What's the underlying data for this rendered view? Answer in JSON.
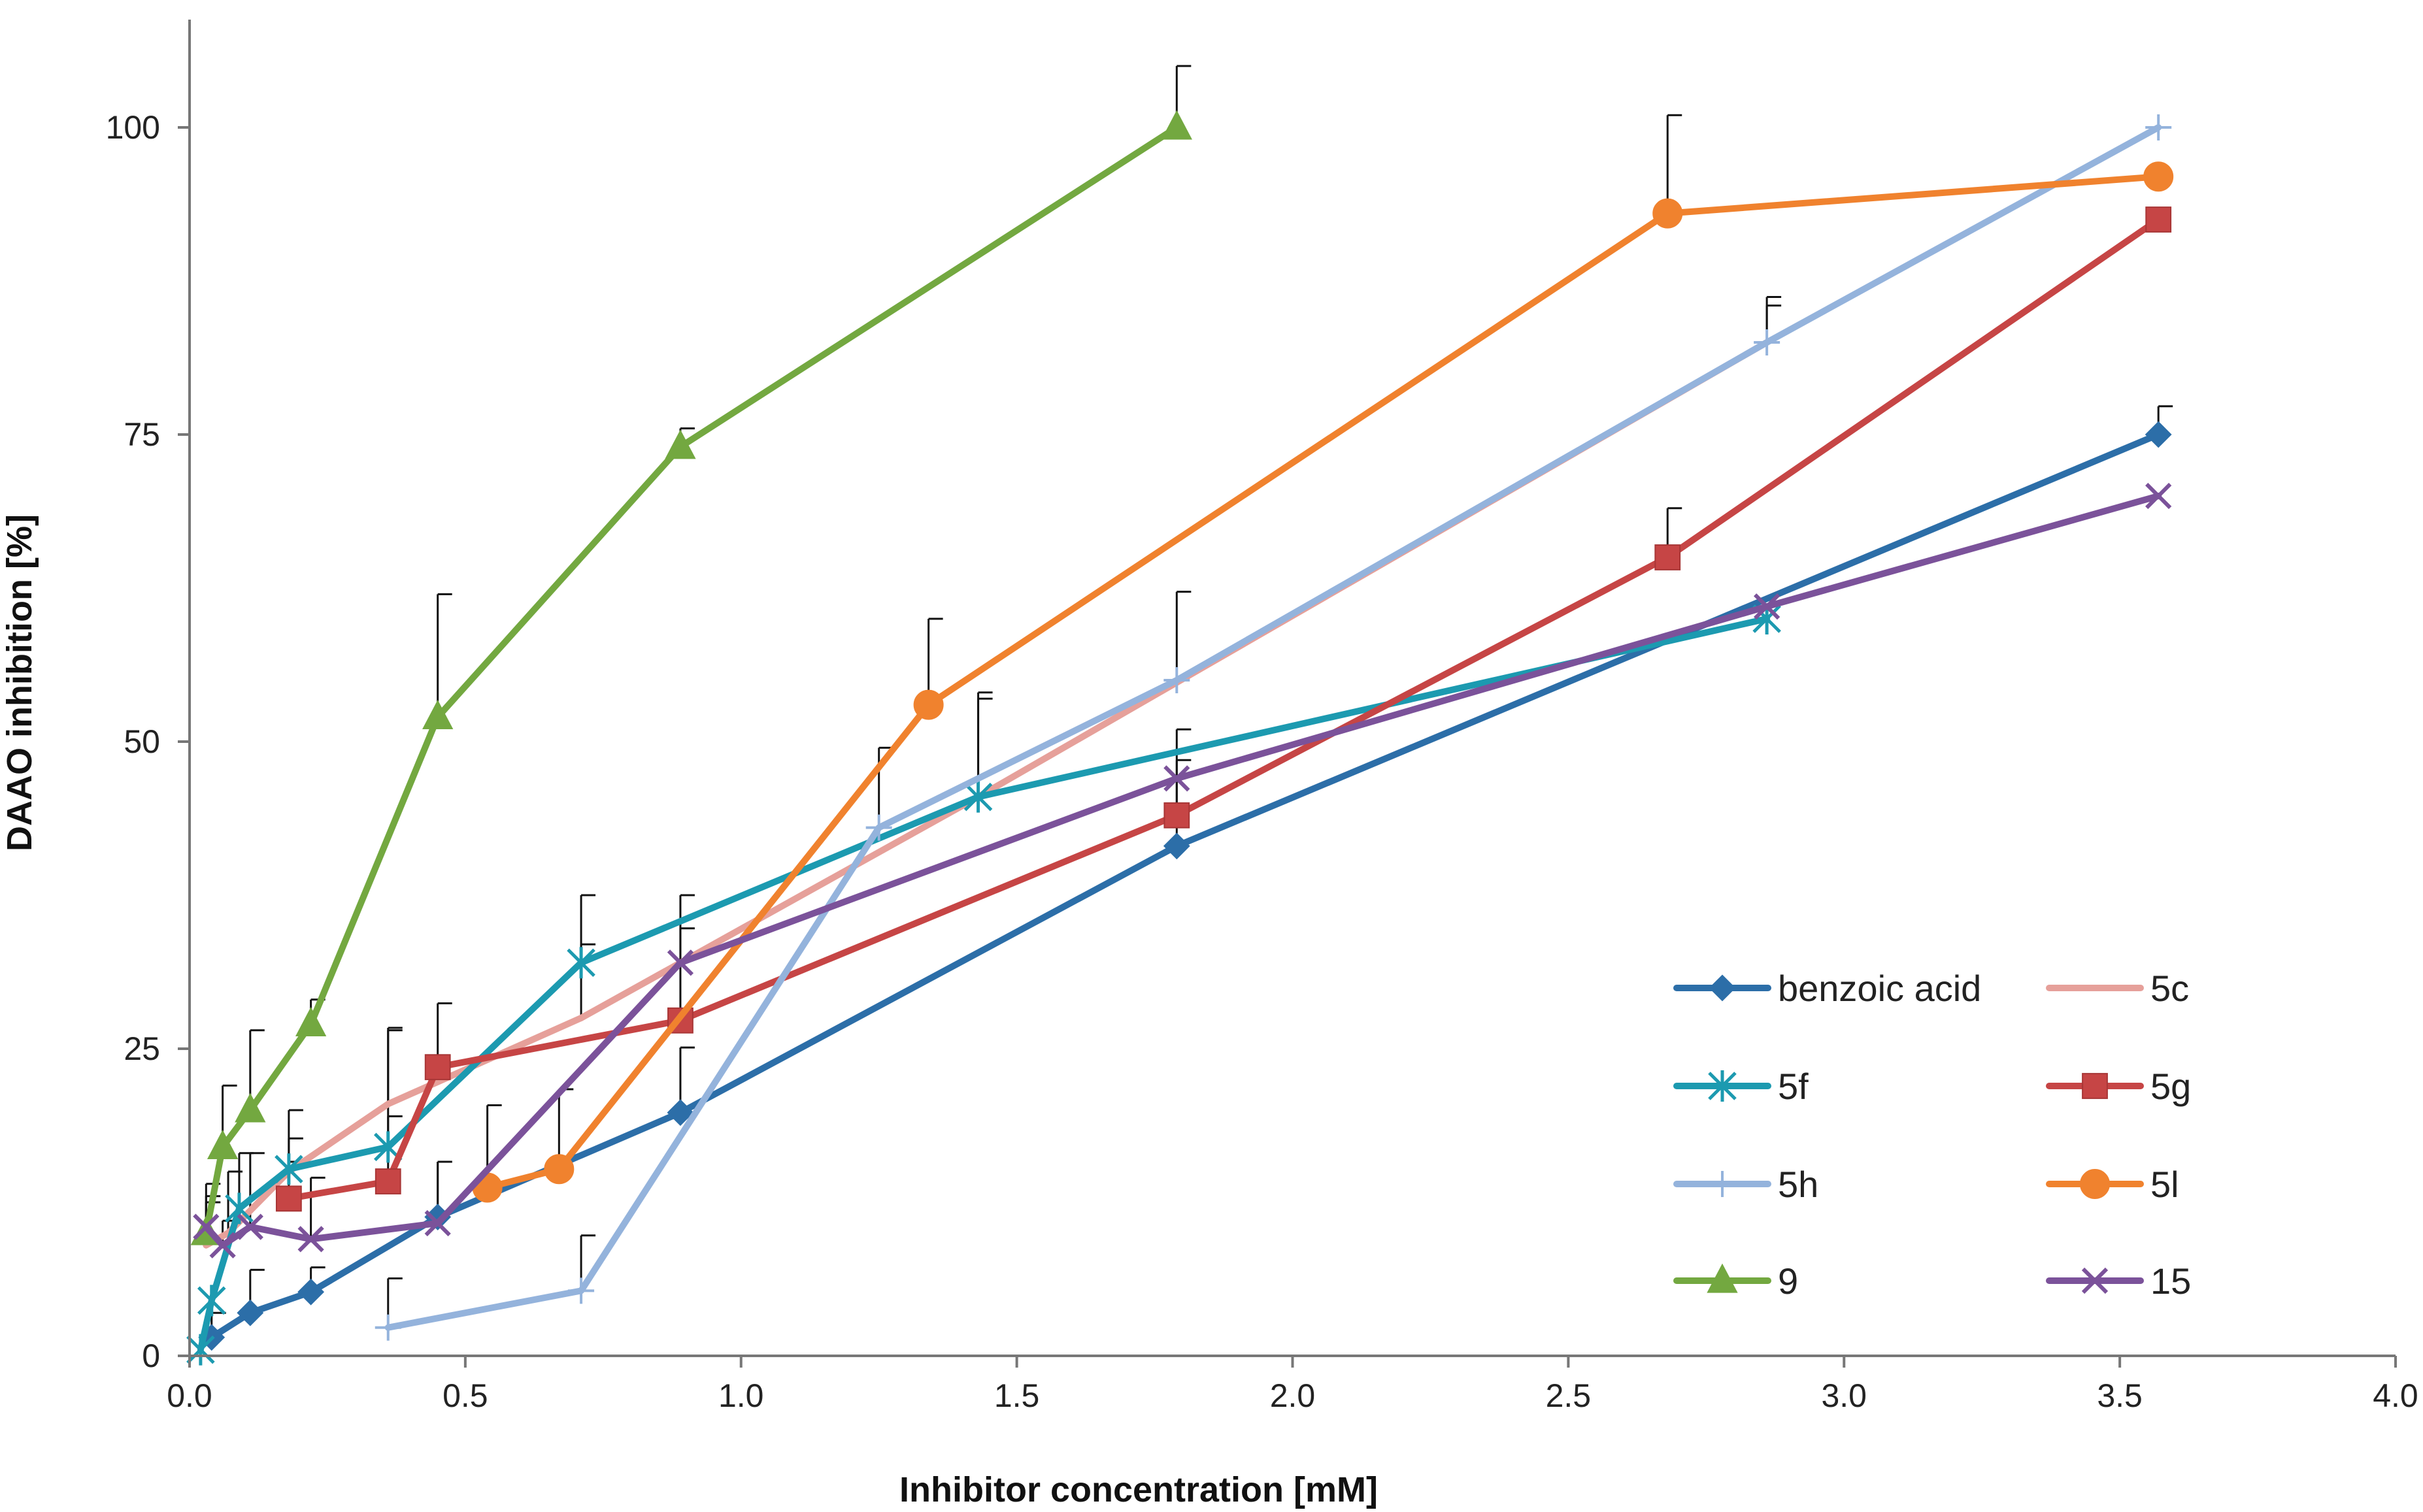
{
  "chart_data": {
    "type": "line",
    "title": "",
    "xlabel": "Inhibitor concentration [mM]",
    "ylabel": "DAAO inhibition [%]",
    "xlim": [
      0,
      4
    ],
    "ylim": [
      0,
      100
    ],
    "x_ticks": [
      "0.0",
      "0.5",
      "1.0",
      "1.5",
      "2.0",
      "2.5",
      "3.0",
      "3.5",
      "4.0"
    ],
    "y_ticks": [
      "0",
      "25",
      "50",
      "75",
      "100"
    ],
    "grid": false,
    "legend_position": "bottom-right",
    "series": [
      {
        "name": "benzoic acid",
        "color": "#2c6ea8",
        "marker": "diamond",
        "x": [
          0.04,
          0.11,
          0.22,
          0.45,
          0.89,
          1.79,
          3.57
        ],
        "y": [
          1.5,
          3.5,
          5.2,
          11.3,
          19.8,
          41.5,
          75
        ],
        "err": [
          2,
          3.5,
          2,
          4.5,
          5.3,
          7,
          2.3
        ]
      },
      {
        "name": "5c",
        "color": "#e6a09a",
        "marker": "none",
        "x": [
          0.03,
          0.07,
          0.18,
          0.36,
          0.71,
          1.43,
          2.86
        ],
        "y": [
          9,
          10,
          15,
          20.5,
          27.5,
          45.5,
          82.5
        ],
        "err": [
          5,
          5,
          5,
          6,
          6,
          8,
          3
        ]
      },
      {
        "name": "5f",
        "color": "#1c9ab0",
        "marker": "asterisk",
        "x": [
          0.02,
          0.04,
          0.09,
          0.18,
          0.36,
          0.71,
          1.43,
          2.86
        ],
        "y": [
          0.5,
          4.5,
          12,
          15.2,
          17,
          32,
          45.5,
          60
        ],
        "err": [
          0,
          0,
          4.5,
          2.5,
          2.5,
          5.5,
          8.5,
          0
        ]
      },
      {
        "name": "5g",
        "color": "#c64545",
        "marker": "square",
        "x": [
          0.18,
          0.36,
          0.45,
          0.89,
          1.79,
          2.68,
          3.57
        ],
        "y": [
          12.8,
          14.2,
          23.5,
          27.3,
          44,
          65,
          92.5
        ],
        "err": [
          3,
          12.5,
          5.2,
          7.5,
          7,
          4,
          0
        ]
      },
      {
        "name": "5h",
        "color": "#94b3dc",
        "marker": "plus",
        "x": [
          0.36,
          0.71,
          1.25,
          1.79,
          2.86,
          3.57
        ],
        "y": [
          2.3,
          5.3,
          43,
          55,
          82.5,
          100
        ],
        "err": [
          4,
          4.5,
          6.5,
          7.2,
          3.7,
          0
        ]
      },
      {
        "name": "5l",
        "color": "#f0822e",
        "marker": "circle",
        "x": [
          0.54,
          0.67,
          1.34,
          2.68,
          3.57
        ],
        "y": [
          13.7,
          15.2,
          53,
          93,
          96
        ],
        "err": [
          6.7,
          6.5,
          7,
          8,
          0
        ]
      },
      {
        "name": "9",
        "color": "#73a840",
        "marker": "triangle",
        "x": [
          0.03,
          0.06,
          0.11,
          0.22,
          0.45,
          0.89,
          1.79
        ],
        "y": [
          10,
          17,
          20,
          27,
          52,
          74,
          100
        ],
        "err": [
          3,
          5,
          6.5,
          2,
          10,
          1.5,
          5
        ]
      },
      {
        "name": "15",
        "color": "#7b529a",
        "marker": "x",
        "x": [
          0.03,
          0.06,
          0.11,
          0.22,
          0.45,
          0.89,
          1.79,
          2.86,
          3.57
        ],
        "y": [
          10.5,
          9,
          10.5,
          9.5,
          10.8,
          32,
          47,
          61,
          70
        ],
        "err": [
          2,
          2,
          6,
          5,
          5,
          5.5,
          0,
          0,
          0
        ]
      }
    ]
  }
}
